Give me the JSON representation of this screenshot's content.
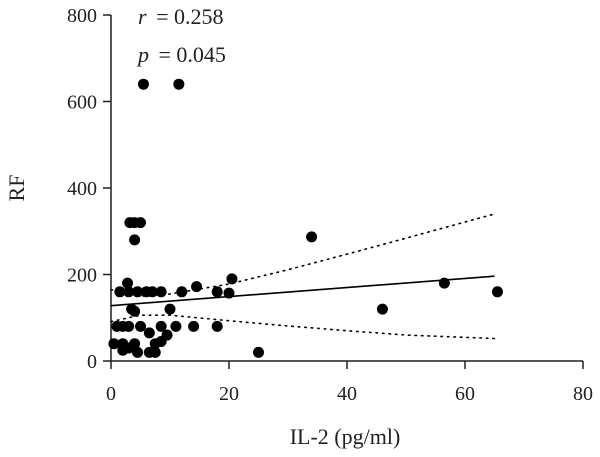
{
  "chart_data": {
    "type": "scatter",
    "title": "",
    "xlabel": "IL-2 (pg/ml)",
    "ylabel": "RF",
    "xlim": [
      0,
      80
    ],
    "ylim": [
      0,
      800
    ],
    "x_ticks": [
      "0",
      "20",
      "40",
      "60",
      "80"
    ],
    "y_ticks": [
      "0",
      "200",
      "400",
      "600",
      "800"
    ],
    "grid": false,
    "legend": "none",
    "annotations": {
      "r_symbol": "r",
      "r_value": "= 0.258",
      "p_symbol": "p",
      "p_value": "= 0.045"
    },
    "colors": {
      "points": "#000000",
      "axis": "#231f20"
    },
    "points": [
      {
        "x": 5.5,
        "y": 640
      },
      {
        "x": 11.5,
        "y": 640
      },
      {
        "x": 3.2,
        "y": 320
      },
      {
        "x": 4.0,
        "y": 320
      },
      {
        "x": 5.0,
        "y": 320
      },
      {
        "x": 4.0,
        "y": 280
      },
      {
        "x": 34.0,
        "y": 287
      },
      {
        "x": 20.5,
        "y": 190
      },
      {
        "x": 2.8,
        "y": 180
      },
      {
        "x": 14.5,
        "y": 172
      },
      {
        "x": 56.5,
        "y": 180
      },
      {
        "x": 65.5,
        "y": 160
      },
      {
        "x": 1.5,
        "y": 160
      },
      {
        "x": 3.0,
        "y": 160
      },
      {
        "x": 4.5,
        "y": 160
      },
      {
        "x": 6.0,
        "y": 160
      },
      {
        "x": 7.0,
        "y": 160
      },
      {
        "x": 8.5,
        "y": 160
      },
      {
        "x": 12.0,
        "y": 160
      },
      {
        "x": 18.0,
        "y": 160
      },
      {
        "x": 20.0,
        "y": 157
      },
      {
        "x": 3.5,
        "y": 120
      },
      {
        "x": 4.0,
        "y": 115
      },
      {
        "x": 10.0,
        "y": 120
      },
      {
        "x": 46.0,
        "y": 120
      },
      {
        "x": 1.0,
        "y": 80
      },
      {
        "x": 2.0,
        "y": 80
      },
      {
        "x": 3.0,
        "y": 80
      },
      {
        "x": 5.0,
        "y": 80
      },
      {
        "x": 8.5,
        "y": 80
      },
      {
        "x": 11.0,
        "y": 80
      },
      {
        "x": 14.0,
        "y": 80
      },
      {
        "x": 18.0,
        "y": 80
      },
      {
        "x": 6.5,
        "y": 65
      },
      {
        "x": 9.5,
        "y": 60
      },
      {
        "x": 0.5,
        "y": 40
      },
      {
        "x": 2.0,
        "y": 40
      },
      {
        "x": 4.0,
        "y": 40
      },
      {
        "x": 7.5,
        "y": 40
      },
      {
        "x": 8.5,
        "y": 45
      },
      {
        "x": 2.0,
        "y": 25
      },
      {
        "x": 3.0,
        "y": 30
      },
      {
        "x": 4.5,
        "y": 20
      },
      {
        "x": 6.5,
        "y": 20
      },
      {
        "x": 7.5,
        "y": 20
      },
      {
        "x": 25.0,
        "y": 20
      }
    ],
    "regression": {
      "x": [
        0,
        65
      ],
      "y": [
        128,
        196
      ]
    },
    "confidence_band": {
      "upper": {
        "x": [
          0,
          5,
          10,
          20,
          30,
          40,
          50,
          65
        ],
        "y": [
          165,
          150,
          155,
          178,
          211,
          247,
          284,
          340
        ]
      },
      "lower": {
        "x": [
          0,
          5,
          10,
          20,
          30,
          40,
          50,
          65
        ],
        "y": [
          91,
          106,
          106,
          93,
          81,
          70,
          60,
          52
        ]
      }
    }
  }
}
